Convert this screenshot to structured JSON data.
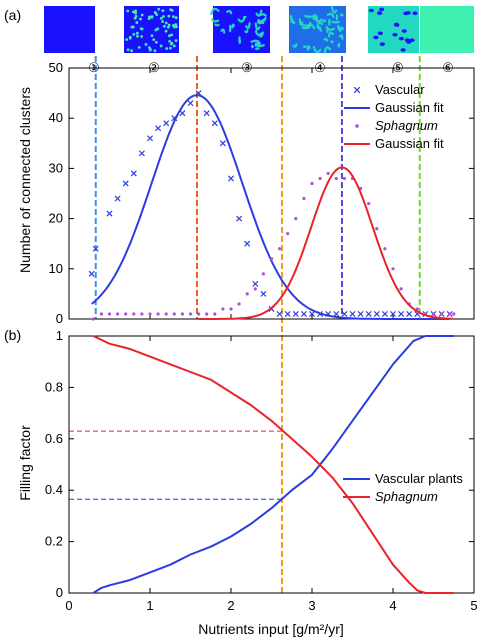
{
  "colors": {
    "vascular": "#2b3de0",
    "sphagnum": "#e8242a",
    "sphagnum_points": "#b24fd8",
    "orange_line": "#ef5a1f",
    "yellow_line": "#e8a020",
    "green_line": "#6edb2d",
    "blue_line": "#3d8fe8",
    "purple_line": "#5548d8"
  },
  "chart_data": [
    {
      "type": "scatter",
      "panel_label": "(a)",
      "ylabel": "Number of connected clusters",
      "xlim": [
        0,
        5
      ],
      "ylim": [
        0,
        50
      ],
      "yticks": [
        0,
        10,
        20,
        30,
        40,
        50
      ],
      "regimes": [
        {
          "label": "①",
          "tile": "uniform-blue"
        },
        {
          "label": "②",
          "tile": "blue-spots"
        },
        {
          "label": "③",
          "tile": "blue-labyrinth"
        },
        {
          "label": "④",
          "tile": "mixed-labyrinth"
        },
        {
          "label": "⑤",
          "tile": "green-holes"
        },
        {
          "label": "⑥",
          "tile": "uniform-green"
        }
      ],
      "vertical_lines": [
        {
          "x": 0.33,
          "color_key": "blue_line"
        },
        {
          "x": 1.58,
          "color_key": "orange_line"
        },
        {
          "x": 2.63,
          "color_key": "yellow_line"
        },
        {
          "x": 3.37,
          "color_key": "purple_line"
        },
        {
          "x": 4.33,
          "color_key": "green_line"
        }
      ],
      "series": [
        {
          "name": "Vascular",
          "kind": "points",
          "marker": "x",
          "points": [
            [
              0.28,
              9
            ],
            [
              0.33,
              14
            ],
            [
              0.5,
              21
            ],
            [
              0.6,
              24
            ],
            [
              0.7,
              27
            ],
            [
              0.8,
              29
            ],
            [
              0.9,
              33
            ],
            [
              1.0,
              36
            ],
            [
              1.1,
              38
            ],
            [
              1.2,
              39
            ],
            [
              1.3,
              40
            ],
            [
              1.4,
              41
            ],
            [
              1.5,
              43
            ],
            [
              1.6,
              45
            ],
            [
              1.7,
              41
            ],
            [
              1.8,
              39
            ],
            [
              1.9,
              35
            ],
            [
              2.0,
              28
            ],
            [
              2.1,
              20
            ],
            [
              2.2,
              15
            ],
            [
              2.3,
              7
            ],
            [
              2.4,
              5
            ],
            [
              2.5,
              2
            ],
            [
              2.6,
              1
            ],
            [
              2.7,
              1
            ],
            [
              2.8,
              1
            ],
            [
              2.9,
              1
            ],
            [
              3.0,
              1
            ],
            [
              3.1,
              1
            ],
            [
              3.2,
              1
            ],
            [
              3.3,
              1
            ],
            [
              3.4,
              1
            ],
            [
              3.5,
              1
            ],
            [
              3.6,
              1
            ],
            [
              3.7,
              1
            ],
            [
              3.8,
              1
            ],
            [
              3.9,
              1
            ],
            [
              4.0,
              1
            ],
            [
              4.1,
              1
            ],
            [
              4.2,
              1
            ],
            [
              4.3,
              1
            ],
            [
              4.4,
              1
            ],
            [
              4.5,
              1
            ],
            [
              4.6,
              1
            ],
            [
              4.7,
              1
            ]
          ]
        },
        {
          "name": "Gaussian fit",
          "kind": "gaussian",
          "color_key": "vascular",
          "amplitude": 44.6,
          "mean": 1.58,
          "sigma": 0.56,
          "x_range": [
            0.28,
            4.7
          ]
        },
        {
          "name": "Sphagnum",
          "kind": "points",
          "marker": "dot",
          "points": [
            [
              0.3,
              0
            ],
            [
              0.4,
              1
            ],
            [
              0.5,
              1
            ],
            [
              0.6,
              1
            ],
            [
              0.7,
              1
            ],
            [
              0.8,
              1
            ],
            [
              0.9,
              1
            ],
            [
              1.0,
              1
            ],
            [
              1.1,
              1
            ],
            [
              1.2,
              1
            ],
            [
              1.3,
              1
            ],
            [
              1.4,
              1
            ],
            [
              1.5,
              1
            ],
            [
              1.6,
              1
            ],
            [
              1.7,
              1
            ],
            [
              1.8,
              1
            ],
            [
              1.9,
              2
            ],
            [
              2.0,
              2
            ],
            [
              2.1,
              3
            ],
            [
              2.2,
              5
            ],
            [
              2.3,
              6
            ],
            [
              2.4,
              9
            ],
            [
              2.5,
              12
            ],
            [
              2.6,
              14
            ],
            [
              2.7,
              17
            ],
            [
              2.8,
              20
            ],
            [
              2.9,
              24
            ],
            [
              3.0,
              27
            ],
            [
              3.1,
              28
            ],
            [
              3.2,
              29
            ],
            [
              3.3,
              28
            ],
            [
              3.4,
              28
            ],
            [
              3.5,
              28
            ],
            [
              3.6,
              26
            ],
            [
              3.7,
              23
            ],
            [
              3.8,
              18
            ],
            [
              3.9,
              14
            ],
            [
              4.0,
              10
            ],
            [
              4.1,
              6
            ],
            [
              4.2,
              3
            ],
            [
              4.3,
              2
            ],
            [
              4.4,
              1
            ],
            [
              4.5,
              1
            ],
            [
              4.6,
              1
            ],
            [
              4.7,
              1
            ],
            [
              4.75,
              1
            ]
          ]
        },
        {
          "name": "Gaussian fit",
          "kind": "gaussian",
          "color_key": "sphagnum",
          "amplitude": 30.2,
          "mean": 3.37,
          "sigma": 0.38,
          "x_range": [
            1.6,
            4.75
          ]
        }
      ],
      "legend": {
        "placement": "top-right",
        "entries": [
          {
            "label": "Vascular",
            "style": "x-marker"
          },
          {
            "label": "Gaussian fit",
            "style": "blue-line"
          },
          {
            "label": "Sphagnum",
            "style": "dot-marker",
            "italic": true
          },
          {
            "label": "Gaussian fit",
            "style": "red-line"
          }
        ]
      }
    },
    {
      "type": "line",
      "panel_label": "(b)",
      "xlabel": "Nutrients input [g/m²/yr]",
      "ylabel": "Filling factor",
      "xlim": [
        0,
        5
      ],
      "ylim": [
        0,
        1
      ],
      "xticks": [
        0,
        1,
        2,
        3,
        4,
        5
      ],
      "yticks": [
        0,
        0.2,
        0.4,
        0.6,
        0.8,
        1
      ],
      "vertical_line": {
        "x": 2.63,
        "color_key": "yellow_line"
      },
      "horizontal_lines": [
        {
          "y": 0.63,
          "x_end": 2.63,
          "color_key": "sphagnum"
        },
        {
          "y": 0.365,
          "x_end": 2.63,
          "color_key": "vascular"
        }
      ],
      "series": [
        {
          "name": "Vascular plants",
          "color_key": "vascular",
          "x": [
            0.3,
            0.4,
            0.5,
            0.75,
            1.0,
            1.25,
            1.5,
            1.75,
            2.0,
            2.25,
            2.5,
            2.75,
            3.0,
            3.25,
            3.5,
            3.75,
            4.0,
            4.25,
            4.4,
            4.75
          ],
          "y": [
            0.0,
            0.02,
            0.03,
            0.05,
            0.08,
            0.11,
            0.15,
            0.18,
            0.22,
            0.27,
            0.33,
            0.4,
            0.46,
            0.56,
            0.67,
            0.78,
            0.89,
            0.98,
            1.0,
            1.0
          ]
        },
        {
          "name": "Sphagnum",
          "color_key": "sphagnum",
          "italic": true,
          "x": [
            0.3,
            0.5,
            0.75,
            1.0,
            1.25,
            1.5,
            1.75,
            2.0,
            2.25,
            2.5,
            2.75,
            3.0,
            3.25,
            3.5,
            3.75,
            4.0,
            4.2,
            4.3,
            4.4,
            4.75
          ],
          "y": [
            1.0,
            0.97,
            0.95,
            0.92,
            0.89,
            0.86,
            0.83,
            0.78,
            0.73,
            0.67,
            0.6,
            0.53,
            0.45,
            0.35,
            0.23,
            0.11,
            0.04,
            0.01,
            0.0,
            0.0
          ]
        }
      ],
      "legend": {
        "placement": "center-right",
        "entries": [
          {
            "label": "Vascular plants",
            "style": "blue-line"
          },
          {
            "label": "Sphagnum",
            "style": "red-line",
            "italic": true
          }
        ]
      }
    }
  ]
}
